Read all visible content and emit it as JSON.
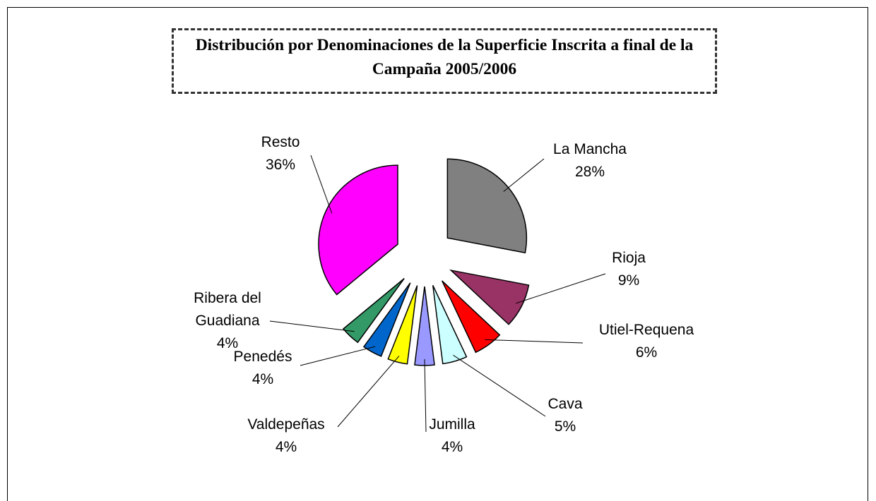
{
  "chart_data": {
    "type": "pie",
    "title": "Distribución por Denominaciones de la Superficie Inscrita a final de la Campaña 2005/2006",
    "categories": [
      "La Mancha",
      "Rioja",
      "Utiel-Requena",
      "Cava",
      "Jumilla",
      "Valdepeñas",
      "Penedés",
      "Ribera del Guadiana",
      "Resto"
    ],
    "values": [
      28,
      9,
      6,
      5,
      4,
      4,
      4,
      4,
      36
    ],
    "value_labels": [
      "28%",
      "9%",
      "6%",
      "5%",
      "4%",
      "4%",
      "4%",
      "4%",
      "36%"
    ],
    "colors": [
      "#808080",
      "#993366",
      "#ff0000",
      "#ccffff",
      "#9999ff",
      "#ffff00",
      "#0066cc",
      "#339966",
      "#ff00ff"
    ]
  }
}
